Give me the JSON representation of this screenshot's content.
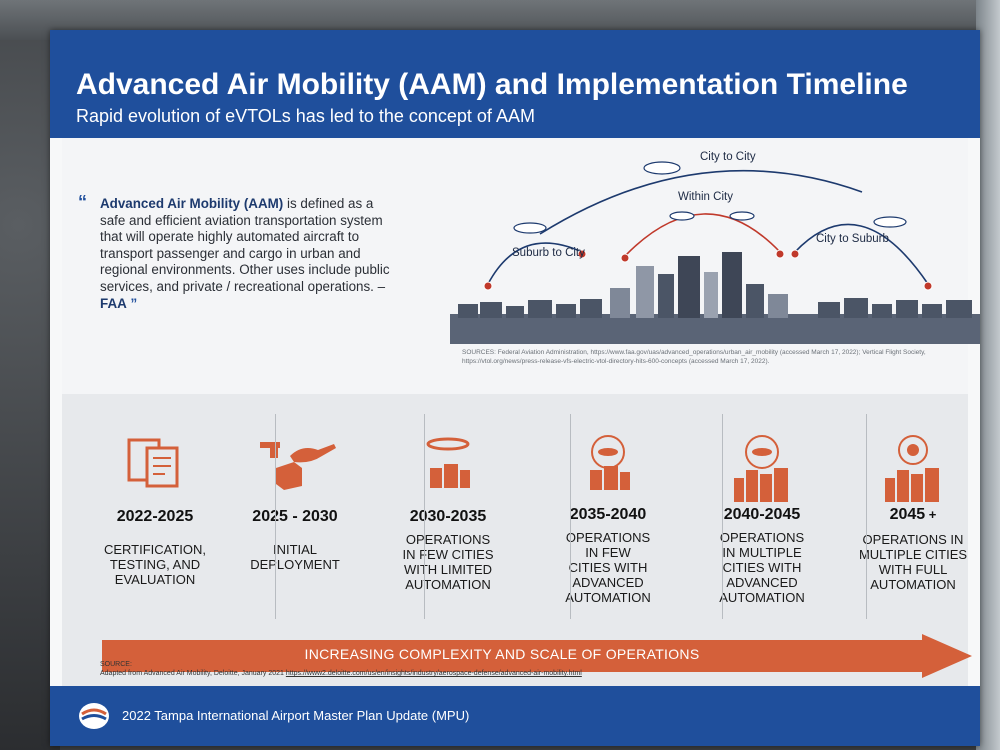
{
  "poster": {
    "title": "Advanced Air Mobility (AAM) and Implementation Timeline",
    "subtitle": "Rapid evolution of eVTOLs has led to the concept of AAM",
    "quote": {
      "bold_lead": "Advanced Air Mobility (AAM)",
      "text": " is defined as a safe and efficient aviation transportation system that will operate highly automated aircraft to transport passenger and cargo in urban and regional environments. Other uses include public services, and private / recreational operations. – ",
      "attribution": "FAA",
      "open_mark": "“",
      "close_mark": "”"
    },
    "diagram": {
      "labels": {
        "city_to_city": "City to City",
        "within_city": "Within City",
        "suburb_to_city": "Suburb to City",
        "city_to_suburb": "City to Suburb"
      },
      "colors": {
        "blue_route": "#1d3a6e",
        "red_route": "#c0392b",
        "skyline": "#4b5566"
      }
    },
    "sources_top": "SOURCES: Federal Aviation Administration, https://www.faa.gov/uas/advanced_operations/urban_air_mobility (accessed March 17, 2022); Vertical Flight Society, https://vtol.org/news/press-release-vfs-electric-vtol-directory-hits-600-concepts (accessed March 17, 2022).",
    "timeline": [
      {
        "years": "2022-2025",
        "desc": "CERTIFICATION,\nTESTING, AND\nEVALUATION",
        "icon": "certification-docs-icon"
      },
      {
        "years": "2025 - 2030",
        "desc": "INITIAL\nDEPLOYMENT",
        "icon": "drone-delivery-icon"
      },
      {
        "years": "2030-2035",
        "desc": "OPERATIONS\nIN FEW CITIES\nWITH LIMITED\nAUTOMATION",
        "icon": "few-cities-icon"
      },
      {
        "years": "2035-2040",
        "desc": "OPERATIONS\nIN FEW\nCITIES WITH\nADVANCED\nAUTOMATION",
        "icon": "few-cities-advanced-icon"
      },
      {
        "years": "2040-2045",
        "desc": "OPERATIONS\nIN MULTIPLE\nCITIES WITH\nADVANCED\nAUTOMATION",
        "icon": "multiple-cities-icon"
      },
      {
        "years": "2045",
        "years_suffix": "+",
        "desc": "OPERATIONS IN\nMULTIPLE CITIES\nWITH FULL\nAUTOMATION",
        "icon": "full-automation-icon"
      }
    ],
    "arrow_label": "INCREASING COMPLEXITY AND SCALE OF OPERATIONS",
    "source_bottom": {
      "heading": "SOURCE:",
      "text": "Adapted from Advanced Air Mobility, Deloitte, January 2021 ",
      "link": "https://www2.deloitte.com/us/en/insights/industry/aerospace-defense/advanced-air-mobility.html"
    },
    "footer": "2022 Tampa International Airport Master Plan Update (MPU)",
    "colors": {
      "header_blue": "#1f4f9c",
      "accent_orange": "#d4603a"
    }
  }
}
